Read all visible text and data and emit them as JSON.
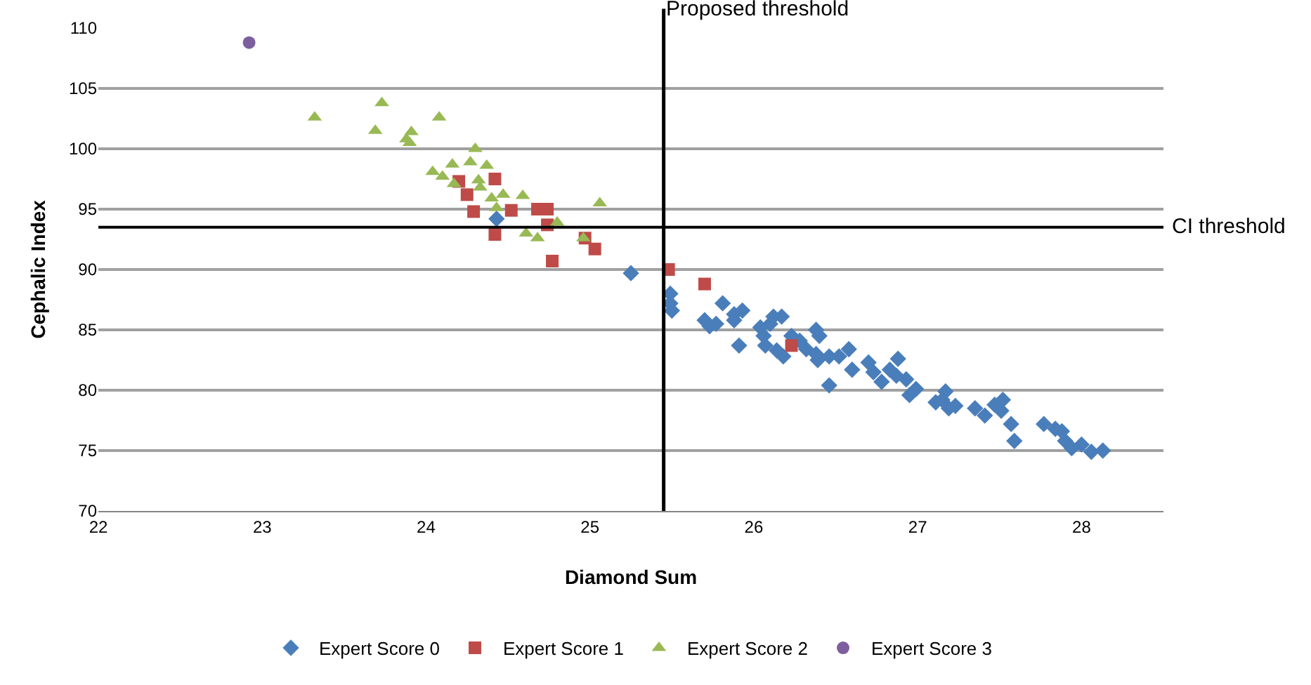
{
  "chart_data": {
    "type": "scatter",
    "xlabel": "Diamond Sum",
    "ylabel": "Cephalic Index",
    "xlim": [
      22,
      28.5
    ],
    "xticks": [
      22,
      23,
      24,
      25,
      26,
      27,
      28
    ],
    "ylim": [
      70,
      110
    ],
    "yticks": [
      70,
      75,
      80,
      85,
      90,
      95,
      100,
      105,
      110
    ],
    "grid": "y",
    "legend": "bottom",
    "ref_lines": [
      {
        "axis": "x",
        "value": 25.45,
        "label": "Proposed threshold",
        "color": "#000000"
      },
      {
        "axis": "y",
        "value": 93.5,
        "label": "CI threshold",
        "color": "#000000"
      }
    ],
    "series": [
      {
        "name": "Expert Score 0",
        "color": "#4a7ebb",
        "marker": "diamond",
        "x": [
          24.43,
          25.25,
          25.49,
          25.49,
          25.5,
          25.7,
          25.73,
          25.77,
          25.81,
          25.88,
          25.93,
          25.91,
          25.88,
          26.04,
          26.06,
          26.07,
          26.1,
          26.12,
          26.17,
          26.14,
          26.18,
          26.22,
          26.23,
          26.28,
          26.32,
          26.38,
          26.4,
          26.38,
          26.39,
          26.46,
          26.52,
          26.46,
          26.58,
          26.6,
          26.7,
          26.73,
          26.78,
          26.83,
          26.87,
          26.88,
          26.93,
          26.95,
          26.99,
          27.11,
          27.15,
          27.17,
          27.19,
          27.23,
          27.35,
          27.41,
          27.47,
          27.51,
          27.52,
          27.57,
          27.59,
          27.77,
          27.84,
          27.88,
          27.9,
          27.94,
          28.0,
          28.06,
          28.13
        ],
        "values": [
          94.2,
          89.7,
          88.0,
          87.2,
          86.6,
          85.8,
          85.3,
          85.5,
          87.2,
          86.3,
          86.6,
          83.7,
          85.8,
          85.2,
          84.5,
          83.7,
          85.5,
          86.1,
          86.1,
          83.3,
          82.8,
          null,
          84.5,
          84.1,
          83.4,
          85.0,
          84.5,
          83.0,
          82.5,
          82.8,
          82.8,
          80.4,
          83.4,
          81.7,
          82.3,
          81.5,
          80.7,
          81.7,
          81.2,
          82.6,
          80.9,
          79.6,
          80.1,
          79.0,
          79.2,
          79.9,
          78.5,
          78.7,
          78.5,
          77.9,
          78.8,
          78.3,
          79.2,
          77.2,
          75.8,
          77.2,
          76.8,
          76.6,
          75.8,
          75.2,
          75.5,
          74.9,
          75.0
        ]
      },
      {
        "name": "Expert Score 1",
        "color": "#be4b48",
        "marker": "square",
        "x": [
          24.2,
          24.42,
          24.25,
          24.29,
          24.52,
          24.68,
          24.74,
          24.42,
          24.74,
          24.97,
          25.03,
          24.77,
          25.48,
          25.7,
          26.23
        ],
        "values": [
          97.3,
          97.5,
          96.2,
          94.8,
          94.9,
          95.0,
          95.0,
          92.9,
          93.7,
          92.6,
          91.7,
          90.7,
          90.0,
          88.8,
          83.7
        ]
      },
      {
        "name": "Expert Score 2",
        "color": "#98b954",
        "marker": "triangle",
        "x": [
          23.32,
          23.69,
          23.73,
          23.88,
          23.9,
          23.91,
          24.08,
          24.04,
          24.1,
          24.16,
          24.17,
          24.3,
          24.27,
          24.32,
          24.33,
          24.37,
          24.4,
          24.47,
          24.59,
          24.61,
          24.68,
          24.8,
          24.96,
          25.06,
          24.43
        ],
        "values": [
          102.6,
          101.5,
          103.8,
          100.8,
          100.5,
          101.4,
          102.6,
          98.1,
          97.7,
          98.7,
          97.1,
          100.0,
          98.9,
          97.4,
          96.8,
          98.6,
          95.9,
          96.2,
          96.1,
          93.0,
          92.6,
          93.9,
          92.6,
          95.5,
          95.1
        ]
      },
      {
        "name": "Expert Score 3",
        "color": "#7d5fa0",
        "marker": "circle",
        "x": [
          22.92
        ],
        "values": [
          108.8
        ]
      }
    ]
  }
}
